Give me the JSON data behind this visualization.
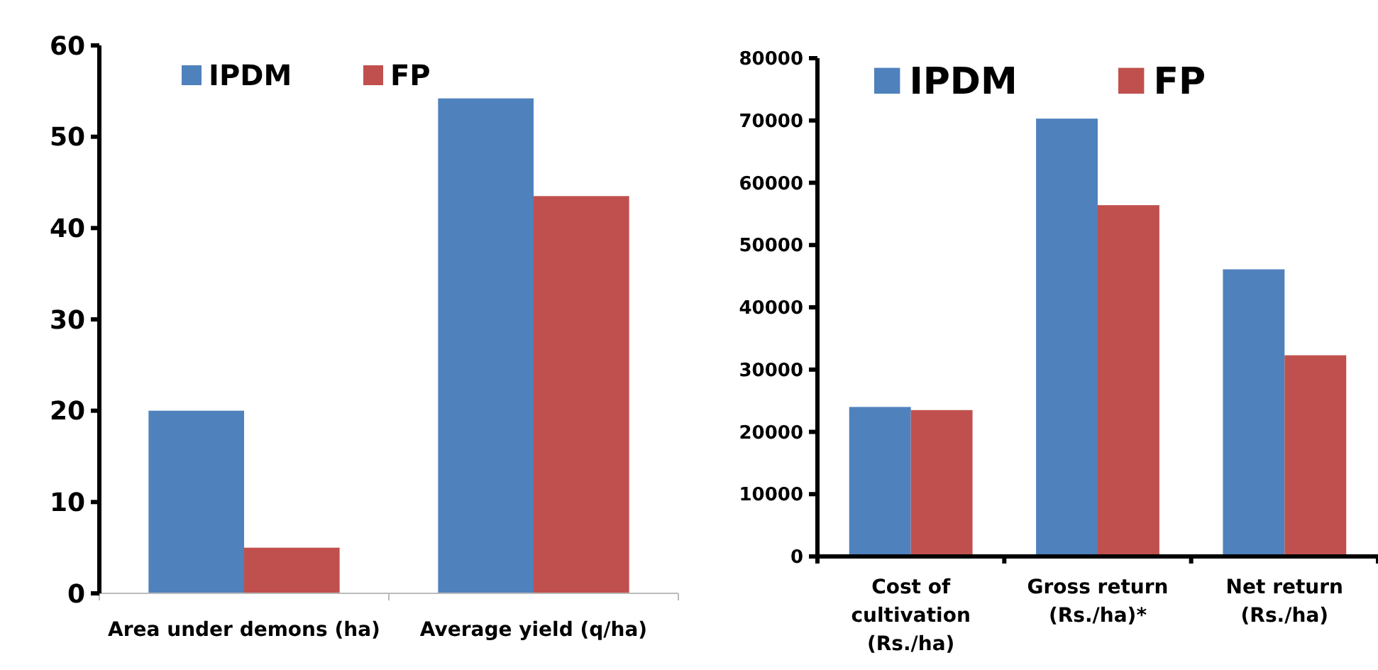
{
  "chart_data": [
    {
      "type": "bar",
      "categories": [
        "Area under demons (ha)",
        "Average yield (q/ha)"
      ],
      "series": [
        {
          "name": "IPDM",
          "color": "#4f81bd",
          "values": [
            20,
            54.2
          ]
        },
        {
          "name": "FP",
          "color": "#c0504d",
          "values": [
            5,
            43.5
          ]
        }
      ],
      "ylim": [
        0,
        60
      ],
      "yticks": [
        0,
        10,
        20,
        30,
        40,
        50,
        60
      ],
      "legend": "top",
      "grid": false
    },
    {
      "type": "bar",
      "categories": [
        "Cost of cultivation (Rs./ha)",
        "Gross return (Rs./ha)*",
        "Net return (Rs./ha)"
      ],
      "series": [
        {
          "name": "IPDM",
          "color": "#4f81bd",
          "values": [
            24000,
            70300,
            46100
          ]
        },
        {
          "name": "FP",
          "color": "#c0504d",
          "values": [
            23500,
            56400,
            32300
          ]
        }
      ],
      "ylim": [
        0,
        80000
      ],
      "yticks": [
        0,
        10000,
        20000,
        30000,
        40000,
        50000,
        60000,
        70000,
        80000
      ],
      "legend": "top",
      "grid": false
    }
  ]
}
